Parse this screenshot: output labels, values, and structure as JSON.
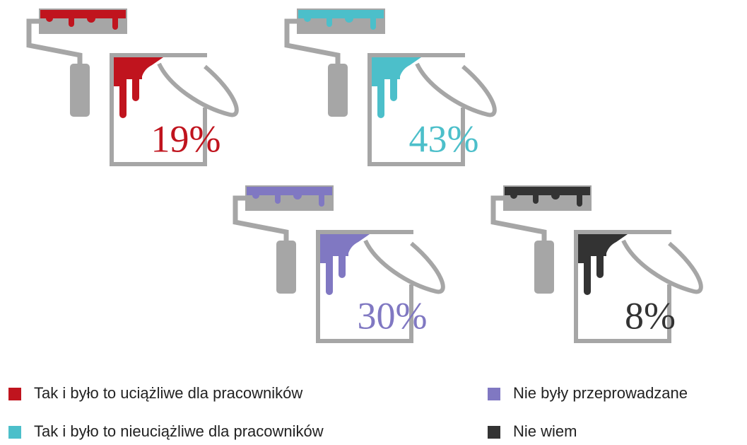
{
  "chart_data": {
    "type": "pictograph",
    "categories": [
      "Tak i było to uciążliwe dla pracowników",
      "Tak i było to nieuciążliwe dla pracowników",
      "Nie były przeprowadzane",
      "Nie wiem"
    ],
    "values": [
      19,
      43,
      30,
      8
    ],
    "value_labels": [
      "19%",
      "43%",
      "30%",
      "8%"
    ],
    "colors": [
      "#c0141e",
      "#4cbfca",
      "#8078c2",
      "#333333"
    ]
  }
}
